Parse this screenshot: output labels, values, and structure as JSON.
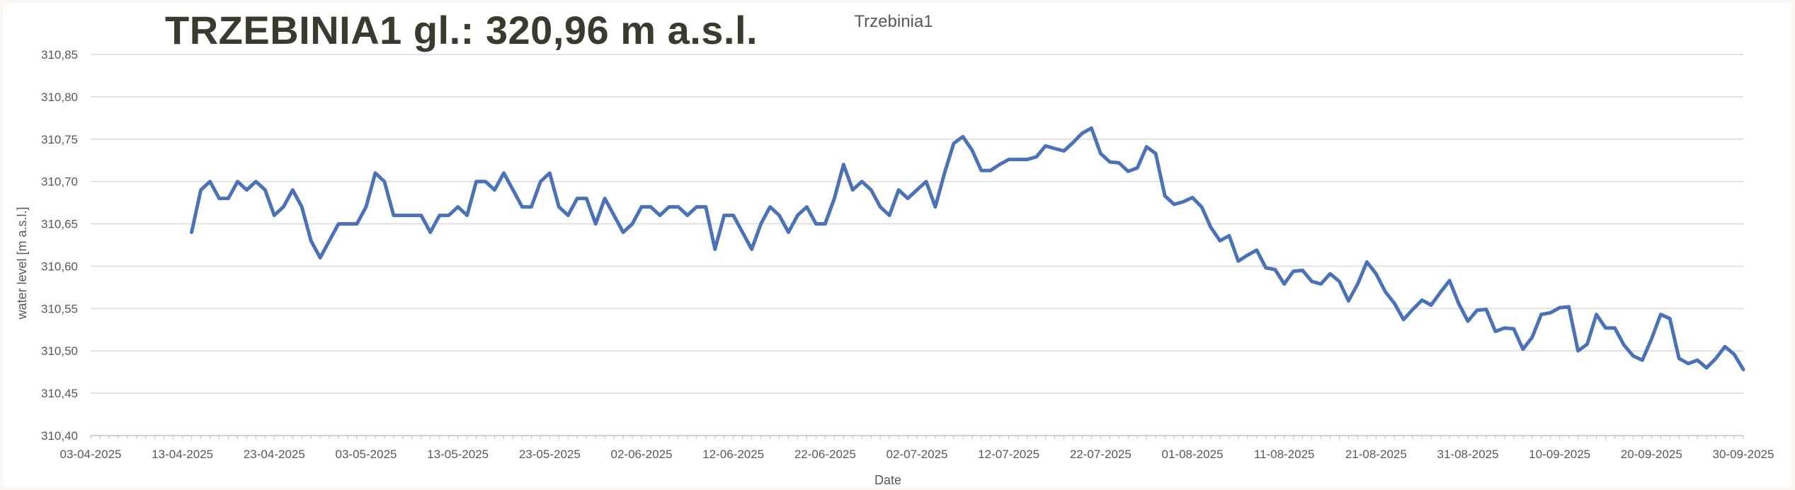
{
  "headline": "TRZEBINIA1 gl.: 320,96 m a.s.l.",
  "chart_data": {
    "type": "line",
    "title": "Trzebinia1",
    "xlabel": "Date",
    "ylabel": "water level [m a.s.l.]",
    "ylim": [
      310.4,
      310.85
    ],
    "y_step": 0.05,
    "xlim": [
      "2025-04-03",
      "2025-09-30"
    ],
    "x_tick_labels": [
      "03-04-2025",
      "13-04-2025",
      "23-04-2025",
      "03-05-2025",
      "13-05-2025",
      "23-05-2025",
      "02-06-2025",
      "12-06-2025",
      "22-06-2025",
      "02-07-2025",
      "12-07-2025",
      "22-07-2025",
      "01-08-2025",
      "11-08-2025",
      "21-08-2025",
      "31-08-2025",
      "10-09-2025",
      "20-09-2025",
      "30-09-2025"
    ],
    "y_tick_labels": [
      "310,40",
      "310,45",
      "310,50",
      "310,55",
      "310,60",
      "310,65",
      "310,70",
      "310,75",
      "310,80",
      "310,85"
    ],
    "grid": "horizontal",
    "legend": "none",
    "color": "#4a72b8",
    "series": [
      {
        "x": [
          "2025-04-14",
          "2025-04-15",
          "2025-04-16",
          "2025-04-17",
          "2025-04-18",
          "2025-04-19",
          "2025-04-20",
          "2025-04-21",
          "2025-04-22",
          "2025-04-23",
          "2025-04-24",
          "2025-04-25",
          "2025-04-26",
          "2025-04-27",
          "2025-04-28",
          "2025-04-29",
          "2025-04-30",
          "2025-05-01",
          "2025-05-02",
          "2025-05-03",
          "2025-05-04",
          "2025-05-05",
          "2025-05-06",
          "2025-05-07",
          "2025-05-08",
          "2025-05-09",
          "2025-05-10",
          "2025-05-11",
          "2025-05-12",
          "2025-05-13",
          "2025-05-14",
          "2025-05-15",
          "2025-05-16",
          "2025-05-17",
          "2025-05-18",
          "2025-05-19",
          "2025-05-20",
          "2025-05-21",
          "2025-05-22",
          "2025-05-23",
          "2025-05-24",
          "2025-05-25",
          "2025-05-26",
          "2025-05-27",
          "2025-05-28",
          "2025-05-29",
          "2025-05-30",
          "2025-05-31",
          "2025-06-01",
          "2025-06-02",
          "2025-06-03",
          "2025-06-04",
          "2025-06-05",
          "2025-06-06",
          "2025-06-07",
          "2025-06-08",
          "2025-06-09",
          "2025-06-10",
          "2025-06-11",
          "2025-06-12",
          "2025-06-13",
          "2025-06-14",
          "2025-06-15",
          "2025-06-16",
          "2025-06-17",
          "2025-06-18",
          "2025-06-19",
          "2025-06-20",
          "2025-06-21",
          "2025-06-22",
          "2025-06-23",
          "2025-06-24",
          "2025-06-25",
          "2025-06-26",
          "2025-06-27",
          "2025-06-28",
          "2025-06-29",
          "2025-06-30",
          "2025-07-01",
          "2025-07-02",
          "2025-07-03",
          "2025-07-04",
          "2025-07-05",
          "2025-07-06",
          "2025-07-07",
          "2025-07-08",
          "2025-07-09",
          "2025-07-10",
          "2025-07-11",
          "2025-07-12",
          "2025-07-13",
          "2025-07-14",
          "2025-07-15",
          "2025-07-16",
          "2025-07-17",
          "2025-07-18",
          "2025-07-19",
          "2025-07-20",
          "2025-07-21",
          "2025-07-22",
          "2025-07-23",
          "2025-07-24",
          "2025-07-25",
          "2025-07-26",
          "2025-07-27",
          "2025-07-28",
          "2025-07-29",
          "2025-07-30",
          "2025-07-31",
          "2025-08-01",
          "2025-08-02",
          "2025-08-03",
          "2025-08-04",
          "2025-08-05",
          "2025-08-06",
          "2025-08-07",
          "2025-08-08",
          "2025-08-09",
          "2025-08-10",
          "2025-08-11",
          "2025-08-12",
          "2025-08-13",
          "2025-08-14",
          "2025-08-15",
          "2025-08-16",
          "2025-08-17",
          "2025-08-18",
          "2025-08-19",
          "2025-08-20",
          "2025-08-21",
          "2025-08-22",
          "2025-08-23",
          "2025-08-24",
          "2025-08-25",
          "2025-08-26",
          "2025-08-27",
          "2025-08-28",
          "2025-08-29",
          "2025-08-30",
          "2025-08-31",
          "2025-09-01",
          "2025-09-02",
          "2025-09-03",
          "2025-09-04",
          "2025-09-05",
          "2025-09-06",
          "2025-09-07",
          "2025-09-08",
          "2025-09-09",
          "2025-09-10",
          "2025-09-11",
          "2025-09-12",
          "2025-09-13",
          "2025-09-14",
          "2025-09-15",
          "2025-09-16",
          "2025-09-17",
          "2025-09-18",
          "2025-09-19",
          "2025-09-20",
          "2025-09-21",
          "2025-09-22",
          "2025-09-23",
          "2025-09-24",
          "2025-09-25",
          "2025-09-26",
          "2025-09-27",
          "2025-09-28",
          "2025-09-29",
          "2025-09-30"
        ],
        "y": [
          310.64,
          310.69,
          310.7,
          310.68,
          310.68,
          310.7,
          310.69,
          310.7,
          310.69,
          310.66,
          310.67,
          310.69,
          310.67,
          310.63,
          310.61,
          310.63,
          310.65,
          310.65,
          310.65,
          310.67,
          310.71,
          310.7,
          310.66,
          310.66,
          310.66,
          310.66,
          310.64,
          310.66,
          310.66,
          310.67,
          310.66,
          310.7,
          310.7,
          310.69,
          310.71,
          310.69,
          310.67,
          310.67,
          310.7,
          310.71,
          310.67,
          310.66,
          310.68,
          310.68,
          310.65,
          310.68,
          310.66,
          310.64,
          310.65,
          310.67,
          310.67,
          310.66,
          310.67,
          310.67,
          310.66,
          310.67,
          310.67,
          310.62,
          310.66,
          310.66,
          310.64,
          310.62,
          310.65,
          310.67,
          310.66,
          310.64,
          310.66,
          310.67,
          310.65,
          310.65,
          310.68,
          310.72,
          310.69,
          310.7,
          310.69,
          310.67,
          310.66,
          310.69,
          310.68,
          310.69,
          310.7,
          310.67,
          310.71,
          310.745,
          310.753,
          310.737,
          310.713,
          310.713,
          310.72,
          310.726,
          310.726,
          310.726,
          310.729,
          310.742,
          310.739,
          310.736,
          310.746,
          310.757,
          310.763,
          310.733,
          310.723,
          310.722,
          310.712,
          310.716,
          310.741,
          310.733,
          310.683,
          310.673,
          310.676,
          310.681,
          310.67,
          310.646,
          310.63,
          310.636,
          310.606,
          310.613,
          310.619,
          310.598,
          310.596,
          310.579,
          310.594,
          310.595,
          310.582,
          310.579,
          310.591,
          310.582,
          310.559,
          310.579,
          310.605,
          310.591,
          310.57,
          310.556,
          310.537,
          310.549,
          310.56,
          310.554,
          310.569,
          310.583,
          310.556,
          310.535,
          310.548,
          310.549,
          310.523,
          310.527,
          310.526,
          310.502,
          310.516,
          310.543,
          310.545,
          310.551,
          310.552,
          310.5,
          310.508,
          310.543,
          310.527,
          310.527,
          310.507,
          310.494,
          310.489,
          310.514,
          310.543,
          310.538,
          310.491,
          310.485,
          310.489,
          310.48,
          310.491,
          310.505,
          310.496,
          310.478
        ]
      }
    ]
  }
}
